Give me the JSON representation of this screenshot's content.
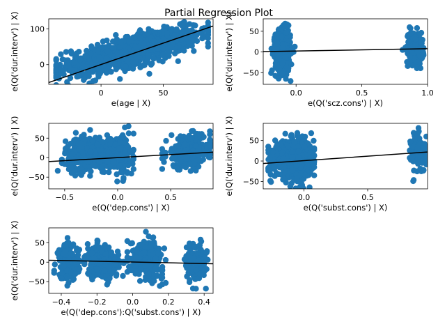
{
  "title": "Partial Regression Plot",
  "colors": {
    "point": "#1f77b4",
    "line": "#000000",
    "axes": "#000000"
  },
  "chart_data": [
    {
      "type": "scatter",
      "xlabel": "e(age | X)",
      "ylabel": "e(Q('dur.interv') | X)",
      "xlim": [
        -42,
        90
      ],
      "ylim": [
        -55,
        128
      ],
      "xticks": [
        0,
        50
      ],
      "yticks": [
        0,
        100
      ],
      "fit_line": [
        [
          -42,
          -50
        ],
        [
          90,
          108
        ]
      ],
      "clusters": [
        {
          "cx": 15,
          "cy": 25,
          "sx": 26,
          "sy": 30,
          "n": 620,
          "slope": 1.05,
          "r": 0.7,
          "xmin": -36,
          "xmax": 86
        },
        {
          "cx": 50,
          "cy": 70,
          "sx": 18,
          "sy": 20,
          "n": 280,
          "slope": 0.9,
          "r": 0.7,
          "xmin": 20,
          "xmax": 86
        }
      ]
    },
    {
      "type": "scatter",
      "xlabel": "e(Q('scz.cons') | X)",
      "ylabel": "e(Q('dur.interv') | X)",
      "xlim": [
        -0.25,
        1.0
      ],
      "ylim": [
        -78,
        80
      ],
      "xticks": [
        0.0,
        0.5,
        1.0
      ],
      "yticks": [
        -50,
        0,
        50
      ],
      "fit_line": [
        [
          -0.25,
          1
        ],
        [
          1.0,
          8
        ]
      ],
      "clusters": [
        {
          "cx": -0.1,
          "cy": 2,
          "sx": 0.028,
          "sy": 25,
          "n": 700,
          "slope": 0,
          "r": 0,
          "xmin": -0.2,
          "xmax": -0.01
        },
        {
          "cx": 0.9,
          "cy": 10,
          "sx": 0.032,
          "sy": 20,
          "n": 160,
          "slope": 0,
          "r": 0,
          "xmin": 0.81,
          "xmax": 0.97
        }
      ]
    },
    {
      "type": "scatter",
      "xlabel": "e(Q('dep.cons') | X)",
      "ylabel": "e(Q('dur.interv') | X)",
      "xlim": [
        -0.65,
        0.9
      ],
      "ylim": [
        -80,
        88
      ],
      "xticks": [
        -0.5,
        0.0,
        0.5
      ],
      "yticks": [
        -50,
        0,
        50
      ],
      "fit_line": [
        [
          -0.65,
          -10
        ],
        [
          0.9,
          14
        ]
      ],
      "clusters": [
        {
          "cx": -0.27,
          "cy": 12,
          "sx": 0.11,
          "sy": 24,
          "n": 520,
          "slope": 70,
          "r": 0.5,
          "xmin": -0.6,
          "xmax": -0.05
        },
        {
          "cx": 0.03,
          "cy": 5,
          "sx": 0.055,
          "sy": 26,
          "n": 180,
          "slope": 0,
          "r": 0,
          "xmin": -0.1,
          "xmax": 0.15
        },
        {
          "cx": 0.68,
          "cy": 15,
          "sx": 0.11,
          "sy": 24,
          "n": 300,
          "slope": 70,
          "r": 0.5,
          "xmin": 0.42,
          "xmax": 0.87
        }
      ]
    },
    {
      "type": "scatter",
      "xlabel": "e(Q('subst.cons') | X)",
      "ylabel": "e(Q('dur.interv') | X)",
      "xlim": [
        -0.32,
        0.97
      ],
      "ylim": [
        -68,
        92
      ],
      "xticks": [
        0.0,
        0.5
      ],
      "yticks": [
        -50,
        0,
        50
      ],
      "fit_line": [
        [
          -0.32,
          -6
        ],
        [
          0.97,
          22
        ]
      ],
      "clusters": [
        {
          "cx": -0.08,
          "cy": 5,
          "sx": 0.075,
          "sy": 24,
          "n": 780,
          "slope": 60,
          "r": 0.4,
          "xmin": -0.28,
          "xmax": 0.08
        },
        {
          "cx": 0.9,
          "cy": 20,
          "sx": 0.03,
          "sy": 25,
          "n": 110,
          "slope": 0,
          "r": 0,
          "xmin": 0.83,
          "xmax": 0.96
        }
      ]
    },
    {
      "type": "scatter",
      "xlabel": "e(Q('dep.cons'):Q('subst.cons') | X)",
      "ylabel": "e(Q('dur.interv') | X)",
      "xlim": [
        -0.47,
        0.45
      ],
      "ylim": [
        -80,
        88
      ],
      "xticks": [
        -0.4,
        -0.2,
        0.0,
        0.2,
        0.4
      ],
      "yticks": [
        -50,
        0,
        50
      ],
      "fit_line": [
        [
          -0.47,
          5
        ],
        [
          0.45,
          -4
        ]
      ],
      "clusters": [
        {
          "cx": -0.36,
          "cy": 0,
          "sx": 0.03,
          "sy": 26,
          "n": 180,
          "slope": -200,
          "r": 0.4,
          "xmin": -0.44,
          "xmax": -0.29
        },
        {
          "cx": -0.17,
          "cy": 0,
          "sx": 0.045,
          "sy": 22,
          "n": 300,
          "slope": -200,
          "r": 0.4,
          "xmin": -0.27,
          "xmax": -0.05
        },
        {
          "cx": 0.08,
          "cy": 10,
          "sx": 0.045,
          "sy": 25,
          "n": 320,
          "slope": -200,
          "r": 0.4,
          "xmin": -0.03,
          "xmax": 0.2
        },
        {
          "cx": 0.35,
          "cy": 0,
          "sx": 0.03,
          "sy": 25,
          "n": 140,
          "slope": 0,
          "r": 0,
          "xmin": 0.29,
          "xmax": 0.42
        }
      ]
    }
  ]
}
